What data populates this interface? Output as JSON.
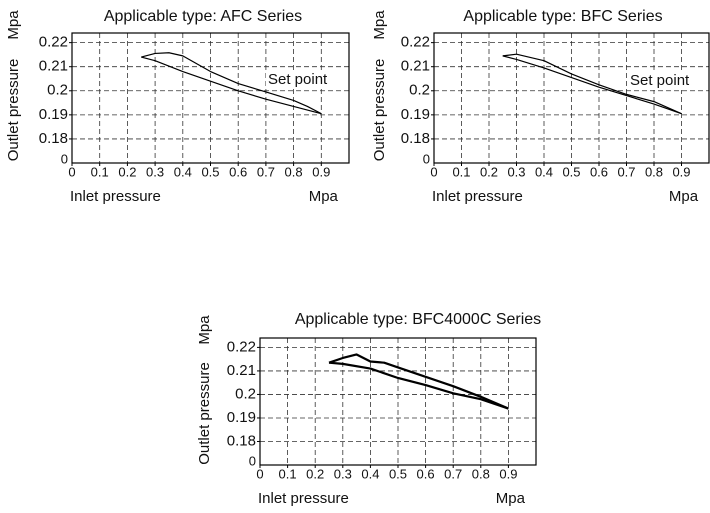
{
  "chart_data": [
    {
      "type": "line",
      "title": "Applicable type: AFC Series",
      "x_label": "Inlet pressure",
      "x_unit": "Mpa",
      "y_label": "Outlet pressure",
      "y_unit": "Mpa",
      "y_origin_label": "0",
      "annotation": "Set point",
      "xlim": [
        0,
        1
      ],
      "xticks": [
        0,
        0.1,
        0.2,
        0.3,
        0.4,
        0.5,
        0.6,
        0.7,
        0.8,
        0.9
      ],
      "ylim": [
        0.17,
        0.224
      ],
      "yticks": [
        0.18,
        0.19,
        0.2,
        0.21,
        0.22
      ],
      "grid": true,
      "series": [
        {
          "color": "#000000",
          "x": [
            0.25,
            0.3,
            0.35,
            0.4,
            0.5,
            0.6,
            0.7,
            0.8,
            0.85,
            0.9
          ],
          "values": [
            0.214,
            0.2155,
            0.2158,
            0.2145,
            0.208,
            0.203,
            0.1995,
            0.196,
            0.1935,
            0.1905
          ]
        },
        {
          "color": "#000000",
          "x": [
            0.25,
            0.3,
            0.4,
            0.5,
            0.6,
            0.7,
            0.8,
            0.9
          ],
          "values": [
            0.214,
            0.2125,
            0.208,
            0.204,
            0.2,
            0.1965,
            0.1935,
            0.1905
          ]
        }
      ]
    },
    {
      "type": "line",
      "title": "Applicable type: BFC Series",
      "x_label": "Inlet pressure",
      "x_unit": "Mpa",
      "y_label": "Outlet pressure",
      "y_unit": "Mpa",
      "y_origin_label": "0",
      "annotation": "Set point",
      "xlim": [
        0,
        1
      ],
      "xticks": [
        0,
        0.1,
        0.2,
        0.3,
        0.4,
        0.5,
        0.6,
        0.7,
        0.8,
        0.9
      ],
      "ylim": [
        0.17,
        0.224
      ],
      "yticks": [
        0.18,
        0.19,
        0.2,
        0.21,
        0.22
      ],
      "grid": true,
      "series": [
        {
          "color": "#000000",
          "x": [
            0.25,
            0.3,
            0.4,
            0.5,
            0.6,
            0.7,
            0.8,
            0.9
          ],
          "values": [
            0.2145,
            0.2152,
            0.2125,
            0.207,
            0.2025,
            0.1985,
            0.1955,
            0.1905
          ]
        },
        {
          "color": "#000000",
          "x": [
            0.25,
            0.3,
            0.4,
            0.5,
            0.6,
            0.7,
            0.8,
            0.9
          ],
          "values": [
            0.2145,
            0.213,
            0.2095,
            0.2055,
            0.2015,
            0.198,
            0.1945,
            0.1905
          ]
        }
      ]
    },
    {
      "type": "line",
      "title": "Applicable type: BFC4000C Series",
      "x_label": "Inlet pressure",
      "x_unit": "Mpa",
      "y_label": "Outlet pressure",
      "y_unit": "Mpa",
      "y_origin_label": "0",
      "xlim": [
        0,
        1
      ],
      "xticks": [
        0,
        0.1,
        0.2,
        0.3,
        0.4,
        0.5,
        0.6,
        0.7,
        0.8,
        0.9
      ],
      "ylim": [
        0.17,
        0.224
      ],
      "yticks": [
        0.18,
        0.19,
        0.2,
        0.21,
        0.22
      ],
      "grid": true,
      "series": [
        {
          "color": "#000000",
          "x": [
            0.25,
            0.3,
            0.35,
            0.4,
            0.45,
            0.5,
            0.6,
            0.7,
            0.8,
            0.9
          ],
          "values": [
            0.2135,
            0.2155,
            0.217,
            0.214,
            0.2135,
            0.2115,
            0.2075,
            0.2035,
            0.199,
            0.194
          ]
        },
        {
          "color": "#000000",
          "x": [
            0.25,
            0.3,
            0.4,
            0.5,
            0.6,
            0.7,
            0.8,
            0.9
          ],
          "values": [
            0.2135,
            0.213,
            0.211,
            0.207,
            0.204,
            0.2005,
            0.198,
            0.194
          ]
        }
      ]
    }
  ]
}
